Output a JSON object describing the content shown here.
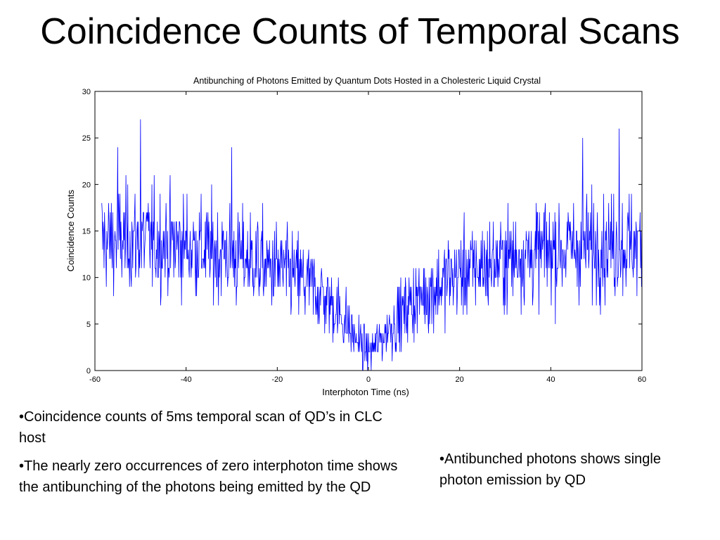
{
  "slide": {
    "title": "Coincidence Counts of Temporal Scans",
    "bullets_left": [
      "•Coincidence counts of 5ms temporal scan of QD’s in CLC host",
      "•The nearly zero occurrences of zero interphoton time shows the antibunching of the photons being emitted by the QD"
    ],
    "bullets_right": [
      "•Antibunched photons shows single photon emission by QD"
    ]
  },
  "chart_data": {
    "type": "line",
    "title": "Antibunching of Photons Emitted by Quantum Dots Hosted in a Cholesteric Liquid Crystal",
    "xlabel": "Interphoton Time (ns)",
    "ylabel": "Coincidence Counts",
    "xlim": [
      -60,
      60
    ],
    "ylim": [
      0,
      30
    ],
    "xticks": [
      -60,
      -40,
      -20,
      0,
      20,
      40,
      60
    ],
    "yticks": [
      0,
      5,
      10,
      15,
      20,
      25,
      30
    ],
    "grid": false,
    "line_color": "#0000ff",
    "x_step_ns": 0.1,
    "profile_x": [
      -60,
      -50,
      -40,
      -30,
      -20,
      -15,
      -10,
      -6,
      -3,
      0,
      3,
      6,
      10,
      15,
      20,
      30,
      40,
      50,
      60
    ],
    "profile_y": [
      14,
      14,
      13.5,
      12.5,
      11,
      10,
      8,
      6,
      3.5,
      2,
      3.5,
      5.5,
      7.5,
      9,
      10.5,
      12,
      13,
      13.5,
      13.5
    ],
    "peaks": [
      {
        "x": -50,
        "y": 27
      },
      {
        "x": 55,
        "y": 26
      },
      {
        "x": -55,
        "y": 24
      },
      {
        "x": 47,
        "y": 25
      },
      {
        "x": -30,
        "y": 24
      }
    ]
  }
}
